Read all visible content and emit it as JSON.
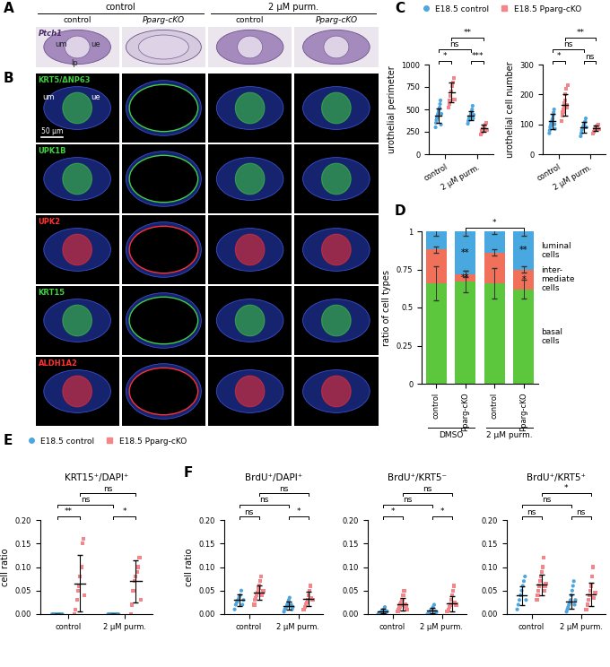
{
  "panel_labels": [
    "A",
    "B",
    "C",
    "D",
    "E",
    "F"
  ],
  "images": {
    "headers": [
      {
        "text": "control",
        "columns": [
          0,
          1
        ]
      },
      {
        "text": "2 µM purm.",
        "columns": [
          2,
          3
        ]
      }
    ],
    "columns": [
      "control",
      "Pparg-cKO",
      "control",
      "Pparg-cKO"
    ],
    "rows": [
      {
        "stain": "Ptch1",
        "color": "#4b2a6b",
        "annotations": [
          "um",
          "ue",
          "lp"
        ]
      },
      {
        "stain": "KRT5/ΔNP63",
        "color": "#3fd13f",
        "annotations": [
          "um",
          "ue"
        ],
        "scale_bar": "50 µm"
      },
      {
        "stain": "UPK1B",
        "color": "#3fd13f"
      },
      {
        "stain": "UPK2",
        "color": "#ff3030"
      },
      {
        "stain": "KRT15",
        "color": "#3fd13f"
      },
      {
        "stain": "ALDH1A2",
        "color": "#ff3030"
      }
    ]
  },
  "chart_data": [
    {
      "type": "scatter",
      "y_label": "urothelial perimeter",
      "categories": [
        "control",
        "2 µM purm."
      ],
      "legend": "upper left",
      "series": [
        {
          "name": "E18.5 control",
          "color": "#4ea6dc",
          "marker": "circle",
          "values": [
            [
              300,
              350,
              380,
              400,
              420,
              440,
              460,
              480,
              500,
              520,
              560,
              600,
              330,
              450
            ],
            [
              340,
              370,
              390,
              410,
              420,
              430,
              450,
              470,
              500,
              540,
              400,
              440
            ]
          ],
          "mean": [
            430,
            430
          ],
          "sd": [
            80,
            50
          ]
        },
        {
          "name": "E18.5 Pparg-cKO",
          "color": "#f4868a",
          "marker": "square",
          "values": [
            [
              520,
              560,
              600,
              650,
              700,
              760,
              800,
              850,
              610
            ],
            [
              220,
              240,
              260,
              280,
              290,
              300,
              310,
              330,
              350,
              270
            ]
          ],
          "mean": [
            690,
            290
          ],
          "sd": [
            110,
            40
          ]
        }
      ],
      "ylim": [
        0,
        1000
      ],
      "yticks": [
        0,
        250,
        500,
        750,
        1000
      ],
      "comparisons": [
        {
          "groups": [
            0,
            1
          ],
          "label": "*"
        },
        {
          "groups": [
            2,
            3
          ],
          "label": "***"
        },
        {
          "groups": [
            0,
            2
          ],
          "label": "ns"
        },
        {
          "groups": [
            1,
            3
          ],
          "label": "**"
        }
      ]
    },
    {
      "type": "scatter",
      "y_label": "urothelial cell number",
      "categories": [
        "control",
        "2 µM purm."
      ],
      "series": [
        {
          "name": "E18.5 control",
          "color": "#4ea6dc",
          "marker": "circle",
          "values": [
            [
              70,
              80,
              90,
              95,
              100,
              105,
              110,
              115,
              120,
              130,
              140,
              150,
              100,
              85
            ],
            [
              60,
              70,
              80,
              85,
              90,
              95,
              100,
              105,
              110,
              120,
              90
            ]
          ],
          "mean": [
            110,
            90
          ],
          "sd": [
            25,
            17
          ]
        },
        {
          "name": "E18.5 Pparg-cKO",
          "color": "#f4868a",
          "marker": "square",
          "values": [
            [
              110,
              130,
              140,
              150,
              160,
              170,
              180,
              200,
              220,
              155,
              165,
              230
            ],
            [
              70,
              75,
              80,
              85,
              88,
              90,
              92,
              95,
              100,
              85
            ]
          ],
          "mean": [
            165,
            87
          ],
          "sd": [
            35,
            8
          ]
        }
      ],
      "ylim": [
        0,
        300
      ],
      "yticks": [
        0,
        100,
        200,
        300
      ],
      "comparisons": [
        {
          "groups": [
            0,
            1
          ],
          "label": "*"
        },
        {
          "groups": [
            2,
            3
          ],
          "label": "ns"
        },
        {
          "groups": [
            0,
            2
          ],
          "label": "ns"
        },
        {
          "groups": [
            1,
            3
          ],
          "label": "**"
        }
      ]
    },
    {
      "type": "bar",
      "stacked": true,
      "y_label": "ratio of cell types",
      "categories": [
        "control",
        "Pparg-cKO",
        "control",
        "Pparg-cKO"
      ],
      "groups": [
        {
          "label": "DMSO",
          "categories": [
            0,
            1
          ]
        },
        {
          "label": "2 µM purm.",
          "categories": [
            2,
            3
          ]
        }
      ],
      "series": [
        {
          "name": "basal\ncells",
          "color": "#5cc63c",
          "values": [
            0.66,
            0.67,
            0.66,
            0.62
          ],
          "error": [
            0.11,
            0.07,
            0.1,
            0.06
          ],
          "significance": [
            null,
            null,
            null,
            null
          ]
        },
        {
          "name": "inter-\nmediate\ncells",
          "color": "#f0705a",
          "values": [
            0.22,
            0.05,
            0.2,
            0.13
          ],
          "error": [
            0.02,
            0.02,
            0.02,
            0.02
          ],
          "significance": [
            null,
            "**",
            null,
            "*"
          ]
        },
        {
          "name": "luminal\ncells",
          "color": "#4aa8e0",
          "values": [
            0.12,
            0.28,
            0.14,
            0.25
          ],
          "error": [
            0.03,
            0.03,
            0.02,
            0.03
          ],
          "significance": [
            null,
            "**",
            null,
            "**"
          ]
        }
      ],
      "ylim": [
        0,
        1
      ],
      "yticks": [
        0,
        0.25,
        0.5,
        0.75,
        1
      ],
      "comparisons": [
        {
          "groups": [
            1,
            3
          ],
          "label": "*"
        }
      ]
    },
    {
      "type": "scatter",
      "title": "KRT15⁺/DAPI⁺",
      "y_label": "cell ratio",
      "categories": [
        "control",
        "2 µM purm."
      ],
      "legend": "upper left",
      "series": [
        {
          "name": "E18.5 control",
          "color": "#4ea6dc",
          "marker": "circle",
          "values": [
            [
              0,
              0,
              0,
              0,
              0,
              0,
              0,
              0
            ],
            [
              0,
              0,
              0,
              0,
              0,
              0,
              0,
              0
            ]
          ],
          "mean": [
            0,
            0
          ],
          "sd": [
            0,
            0
          ]
        },
        {
          "name": "E18.5 Pparg-cKO",
          "color": "#f4868a",
          "marker": "square",
          "values": [
            [
              0.0,
              0.01,
              0.03,
              0.05,
              0.06,
              0.08,
              0.1,
              0.15,
              0.16,
              0.04
            ],
            [
              0.0,
              0.02,
              0.05,
              0.07,
              0.08,
              0.09,
              0.1,
              0.12,
              0.03
            ]
          ],
          "mean": [
            0.065,
            0.07
          ],
          "sd": [
            0.06,
            0.045
          ]
        }
      ],
      "ylim": [
        0,
        0.2
      ],
      "yticks": [
        {
          "value": 0,
          "label": "0.00"
        },
        0.05,
        {
          "value": 0.1,
          "label": "0.10"
        },
        0.15,
        {
          "value": 0.2,
          "label": "0.20"
        }
      ],
      "comparisons": [
        {
          "groups": [
            0,
            1
          ],
          "label": "**"
        },
        {
          "groups": [
            2,
            3
          ],
          "label": "*"
        },
        {
          "groups": [
            0,
            2
          ],
          "label": "ns"
        },
        {
          "groups": [
            1,
            3
          ],
          "label": "ns"
        }
      ]
    },
    {
      "type": "scatter",
      "title": "BrdU⁺/DAPI⁺",
      "y_label": "cell ratio",
      "categories": [
        "control",
        "2 µM purm."
      ],
      "series": [
        {
          "name": "E18.5 control",
          "color": "#4ea6dc",
          "marker": "circle",
          "values": [
            [
              0.01,
              0.02,
              0.025,
              0.03,
              0.035,
              0.04,
              0.05,
              0.02,
              0.03
            ],
            [
              0.005,
              0.01,
              0.012,
              0.015,
              0.02,
              0.025,
              0.03,
              0.035,
              0.018,
              0.02,
              0.01,
              0.015
            ]
          ],
          "mean": [
            0.03,
            0.018
          ],
          "sd": [
            0.012,
            0.009
          ]
        },
        {
          "name": "E18.5 Pparg-cKO",
          "color": "#f4868a",
          "marker": "square",
          "values": [
            [
              0.02,
              0.03,
              0.035,
              0.04,
              0.045,
              0.05,
              0.055,
              0.06,
              0.07,
              0.08,
              0.04,
              0.045,
              0.05
            ],
            [
              0.01,
              0.015,
              0.02,
              0.025,
              0.03,
              0.04,
              0.05,
              0.06,
              0.035,
              0.03
            ]
          ],
          "mean": [
            0.046,
            0.032
          ],
          "sd": [
            0.015,
            0.015
          ]
        }
      ],
      "ylim": [
        0,
        0.2
      ],
      "yticks": [
        {
          "value": 0,
          "label": "0.00"
        },
        0.05,
        {
          "value": 0.1,
          "label": "0.10"
        },
        0.15,
        {
          "value": 0.2,
          "label": "0.20"
        }
      ],
      "comparisons": [
        {
          "groups": [
            0,
            1
          ],
          "label": "ns"
        },
        {
          "groups": [
            2,
            3
          ],
          "label": "*"
        },
        {
          "groups": [
            0,
            2
          ],
          "label": "ns"
        },
        {
          "groups": [
            1,
            3
          ],
          "label": "ns"
        }
      ]
    },
    {
      "type": "scatter",
      "title": "BrdU⁺/KRT5⁻",
      "categories": [
        "control",
        "2 µM purm."
      ],
      "series": [
        {
          "name": "E18.5 control",
          "color": "#4ea6dc",
          "marker": "circle",
          "values": [
            [
              0,
              0.002,
              0.004,
              0.005,
              0.008,
              0.01,
              0.015,
              0.003,
              0.006
            ],
            [
              0,
              0.002,
              0.005,
              0.008,
              0.01,
              0.015,
              0.02,
              0.006,
              0.004
            ]
          ],
          "mean": [
            0.006,
            0.007
          ],
          "sd": [
            0.005,
            0.006
          ]
        },
        {
          "name": "E18.5 Pparg-cKO",
          "color": "#f4868a",
          "marker": "square",
          "values": [
            [
              0.005,
              0.01,
              0.015,
              0.02,
              0.025,
              0.03,
              0.04,
              0.05,
              0.02,
              0.015,
              0.01
            ],
            [
              0.005,
              0.01,
              0.015,
              0.02,
              0.03,
              0.04,
              0.05,
              0.06,
              0.025,
              0.02
            ]
          ],
          "mean": [
            0.021,
            0.022
          ],
          "sd": [
            0.013,
            0.016
          ]
        }
      ],
      "ylim": [
        0,
        0.2
      ],
      "yticks": [
        {
          "value": 0,
          "label": "0.00"
        },
        0.05,
        {
          "value": 0.1,
          "label": "0.10"
        },
        0.15,
        {
          "value": 0.2,
          "label": "0.20"
        }
      ],
      "comparisons": [
        {
          "groups": [
            0,
            1
          ],
          "label": "*"
        },
        {
          "groups": [
            2,
            3
          ],
          "label": "*"
        },
        {
          "groups": [
            0,
            2
          ],
          "label": "ns"
        },
        {
          "groups": [
            1,
            3
          ],
          "label": "ns"
        }
      ]
    },
    {
      "type": "scatter",
      "title": "BrdU⁺/KRT5⁺",
      "categories": [
        "control",
        "2 µM purm."
      ],
      "series": [
        {
          "name": "E18.5 control",
          "color": "#4ea6dc",
          "marker": "circle",
          "values": [
            [
              0.01,
              0.02,
              0.03,
              0.04,
              0.05,
              0.06,
              0.07,
              0.08,
              0.03
            ],
            [
              0.005,
              0.01,
              0.015,
              0.02,
              0.025,
              0.03,
              0.04,
              0.05,
              0.06,
              0.07,
              0.02,
              0.03
            ]
          ],
          "mean": [
            0.04,
            0.027
          ],
          "sd": [
            0.02,
            0.015
          ]
        },
        {
          "name": "E18.5 Pparg-cKO",
          "color": "#f4868a",
          "marker": "square",
          "values": [
            [
              0.03,
              0.04,
              0.05,
              0.06,
              0.07,
              0.08,
              0.09,
              0.1,
              0.12,
              0.05,
              0.06,
              0.065
            ],
            [
              0.01,
              0.02,
              0.03,
              0.04,
              0.05,
              0.06,
              0.08,
              0.1,
              0.035,
              0.045
            ]
          ],
          "mean": [
            0.062,
            0.042
          ],
          "sd": [
            0.022,
            0.025
          ]
        }
      ],
      "ylim": [
        0,
        0.2
      ],
      "yticks": [
        {
          "value": 0,
          "label": "0.00"
        },
        0.05,
        {
          "value": 0.1,
          "label": "0.10"
        },
        0.15,
        {
          "value": 0.2,
          "label": "0.20"
        }
      ],
      "comparisons": [
        {
          "groups": [
            0,
            1
          ],
          "label": "ns"
        },
        {
          "groups": [
            2,
            3
          ],
          "label": "ns"
        },
        {
          "groups": [
            0,
            2
          ],
          "label": "ns"
        },
        {
          "groups": [
            1,
            3
          ],
          "label": "*"
        }
      ]
    }
  ]
}
